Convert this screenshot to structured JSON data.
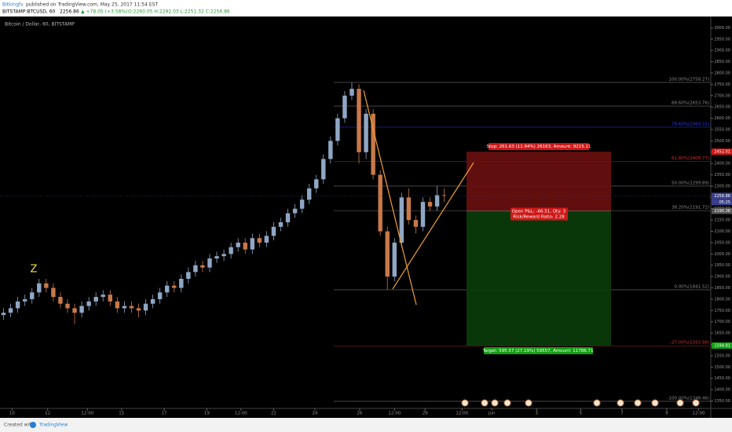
{
  "header": {
    "author": "Bitkingfx",
    "published": "published on TradingView.com, May 25, 2017 11:54 EST",
    "symbol": "BITSTAMP:BTCUSD, 60",
    "last": "2256.86",
    "change": "▲ +78.05 (+3.58%)",
    "ohlc": "O:2260.05  H:2292.03  L:2251.32  C:2256.86"
  },
  "footer": {
    "created": "Created with",
    "brand": "TradingView"
  },
  "chart_data": {
    "type": "candlestick",
    "title": "Bitcoin / Dollar, 60, BITSTAMP",
    "annotation": "Z",
    "up_color": "#8fa7c4",
    "down_color": "#c8794a",
    "grid": false,
    "xlim": [
      -0.5,
      99.5
    ],
    "xticks": [
      {
        "value": 1.2,
        "label": "10"
      },
      {
        "value": 6.2,
        "label": "12"
      },
      {
        "value": 11.8,
        "label": "12:00"
      },
      {
        "value": 16.6,
        "label": "15"
      },
      {
        "value": 22.6,
        "label": "17"
      },
      {
        "value": 28.6,
        "label": "19"
      },
      {
        "value": 33.4,
        "label": "12:00"
      },
      {
        "value": 38,
        "label": "22"
      },
      {
        "value": 43.8,
        "label": "24"
      },
      {
        "value": 50.1,
        "label": "26"
      },
      {
        "value": 55,
        "label": "12:00"
      },
      {
        "value": 59.3,
        "label": "29"
      },
      {
        "value": 64.5,
        "label": "12:00"
      },
      {
        "value": 68.7,
        "label": "Jun"
      },
      {
        "value": 75,
        "label": "3"
      },
      {
        "value": 81.2,
        "label": "5"
      },
      {
        "value": 87,
        "label": "7"
      },
      {
        "value": 93.3,
        "label": "9"
      },
      {
        "value": 97.8,
        "label": "12:00"
      }
    ],
    "ylim": [
      1317,
      3036
    ],
    "yticks": [
      {
        "value": 1350,
        "label": "1350.00"
      },
      {
        "value": 1400,
        "label": "1400.00"
      },
      {
        "value": 1450,
        "label": "1450.00"
      },
      {
        "value": 1500,
        "label": "1500.00"
      },
      {
        "value": 1550,
        "label": "1550.00"
      },
      {
        "value": 1600,
        "label": "1600.00"
      },
      {
        "value": 1650,
        "label": "1650.00"
      },
      {
        "value": 1700,
        "label": "1700.00"
      },
      {
        "value": 1750,
        "label": "1750.00"
      },
      {
        "value": 1800,
        "label": "1800.00"
      },
      {
        "value": 1850,
        "label": "1850.00"
      },
      {
        "value": 1900,
        "label": "1900.00"
      },
      {
        "value": 1950,
        "label": "1950.00"
      },
      {
        "value": 2000,
        "label": "2000.00"
      },
      {
        "value": 2050,
        "label": "2050.00"
      },
      {
        "value": 2100,
        "label": "2100.00"
      },
      {
        "value": 2150,
        "label": "2150.00"
      },
      {
        "value": 2200,
        "label": "2200.00"
      },
      {
        "value": 2250,
        "label": "2250.00"
      },
      {
        "value": 2300,
        "label": "2300.00"
      },
      {
        "value": 2350,
        "label": "2350.00"
      },
      {
        "value": 2400,
        "label": "2400.00"
      },
      {
        "value": 2450,
        "label": "2450.00"
      },
      {
        "value": 2500,
        "label": "2500.00"
      },
      {
        "value": 2550,
        "label": "2550.00"
      },
      {
        "value": 2600,
        "label": "2600.00"
      },
      {
        "value": 2650,
        "label": "2650.00"
      },
      {
        "value": 2700,
        "label": "2700.00"
      },
      {
        "value": 2750,
        "label": "2750.00"
      },
      {
        "value": 2800,
        "label": "2800.00"
      },
      {
        "value": 2850,
        "label": "2850.00"
      },
      {
        "value": 2900,
        "label": "2900.00"
      },
      {
        "value": 2950,
        "label": "2950.00"
      },
      {
        "value": 3000,
        "label": "3000.00"
      }
    ],
    "open": [
      1730,
      1740,
      1760,
      1790,
      1800,
      1830,
      1870,
      1850,
      1810,
      1780,
      1760,
      1740,
      1770,
      1790,
      1810,
      1820,
      1790,
      1760,
      1770,
      1760,
      1750,
      1780,
      1800,
      1830,
      1860,
      1850,
      1890,
      1920,
      1950,
      1940,
      1980,
      1990,
      2000,
      2030,
      2050,
      2020,
      2070,
      2050,
      2080,
      2120,
      2140,
      2180,
      2200,
      2240,
      2290,
      2330,
      2420,
      2500,
      2600,
      2700,
      2730,
      2450,
      2620,
      2350,
      2100,
      1900,
      2050,
      2250,
      2150,
      2120,
      2230,
      2210,
      2260
    ],
    "high": [
      1760,
      1780,
      1810,
      1820,
      1850,
      1890,
      1890,
      1870,
      1830,
      1800,
      1780,
      1790,
      1810,
      1830,
      1840,
      1840,
      1810,
      1790,
      1790,
      1780,
      1800,
      1820,
      1850,
      1880,
      1880,
      1910,
      1940,
      1970,
      1970,
      2000,
      2010,
      2020,
      2050,
      2070,
      2070,
      2090,
      2090,
      2100,
      2140,
      2160,
      2200,
      2220,
      2260,
      2310,
      2350,
      2440,
      2520,
      2620,
      2720,
      2758,
      2750,
      2640,
      2640,
      2370,
      2120,
      2070,
      2270,
      2290,
      2170,
      2250,
      2250,
      2300,
      2290
    ],
    "low": [
      1710,
      1720,
      1740,
      1770,
      1780,
      1810,
      1830,
      1790,
      1760,
      1740,
      1690,
      1720,
      1750,
      1770,
      1790,
      1770,
      1740,
      1740,
      1740,
      1720,
      1730,
      1760,
      1780,
      1810,
      1830,
      1830,
      1870,
      1900,
      1920,
      1920,
      1960,
      1970,
      1980,
      2010,
      2000,
      2000,
      2030,
      2030,
      2060,
      2100,
      2120,
      2160,
      2180,
      2220,
      2270,
      2310,
      2400,
      2480,
      2580,
      2680,
      2400,
      2420,
      2330,
      2080,
      1842,
      1880,
      2030,
      2130,
      2090,
      2100,
      2190,
      2190,
      2230
    ],
    "close": [
      1740,
      1760,
      1790,
      1800,
      1830,
      1870,
      1850,
      1810,
      1780,
      1760,
      1740,
      1770,
      1790,
      1810,
      1820,
      1790,
      1760,
      1770,
      1760,
      1750,
      1780,
      1800,
      1830,
      1860,
      1850,
      1890,
      1920,
      1950,
      1940,
      1980,
      1990,
      2000,
      2030,
      2050,
      2020,
      2070,
      2050,
      2080,
      2120,
      2140,
      2180,
      2200,
      2240,
      2290,
      2330,
      2420,
      2500,
      2600,
      2700,
      2730,
      2450,
      2620,
      2350,
      2100,
      1900,
      2050,
      2250,
      2150,
      2120,
      2230,
      2210,
      2260,
      2256.86
    ],
    "last_price": 2256.86,
    "countdown": "05:25",
    "fib_levels": {
      "values": [
        2758.27,
        2653.76,
        2560.31,
        2408.77,
        2299.89,
        2191.72,
        1841.52,
        1593.98,
        1348.46
      ],
      "value_labels": [
        "100.00%(2758.27)",
        "88.60%(2653.76)",
        "78.60%(2560.31)",
        "61.80%(2408.77)",
        "50.00%(2299.89)",
        "38.20%(2191.72)",
        "0.00%(1841.52)",
        "-27.00%(1593.98)",
        "-100.00%(1348.46)"
      ],
      "colors": [
        "#8a8a8a",
        "#8a8a8a",
        "#2a3af0",
        "#d03030",
        "#8a8a8a",
        "#8a8a8a",
        "#8a8a8a",
        "#d03030",
        "#8a8a8a"
      ]
    },
    "position": {
      "stop": 2452.01,
      "entry": 2190.38,
      "target": 1594.81,
      "stop_label": "Stop: 261.63 (11.94%) 26163, Amount: 9215.11",
      "pnl_label": "Open P&L: -66.51, Qty: 3",
      "rr_label": "Risk/Reward Ratio: 2.28",
      "target_label": "Target: 595.57 (27.19%) 59557, Amount: 11786.71"
    }
  }
}
